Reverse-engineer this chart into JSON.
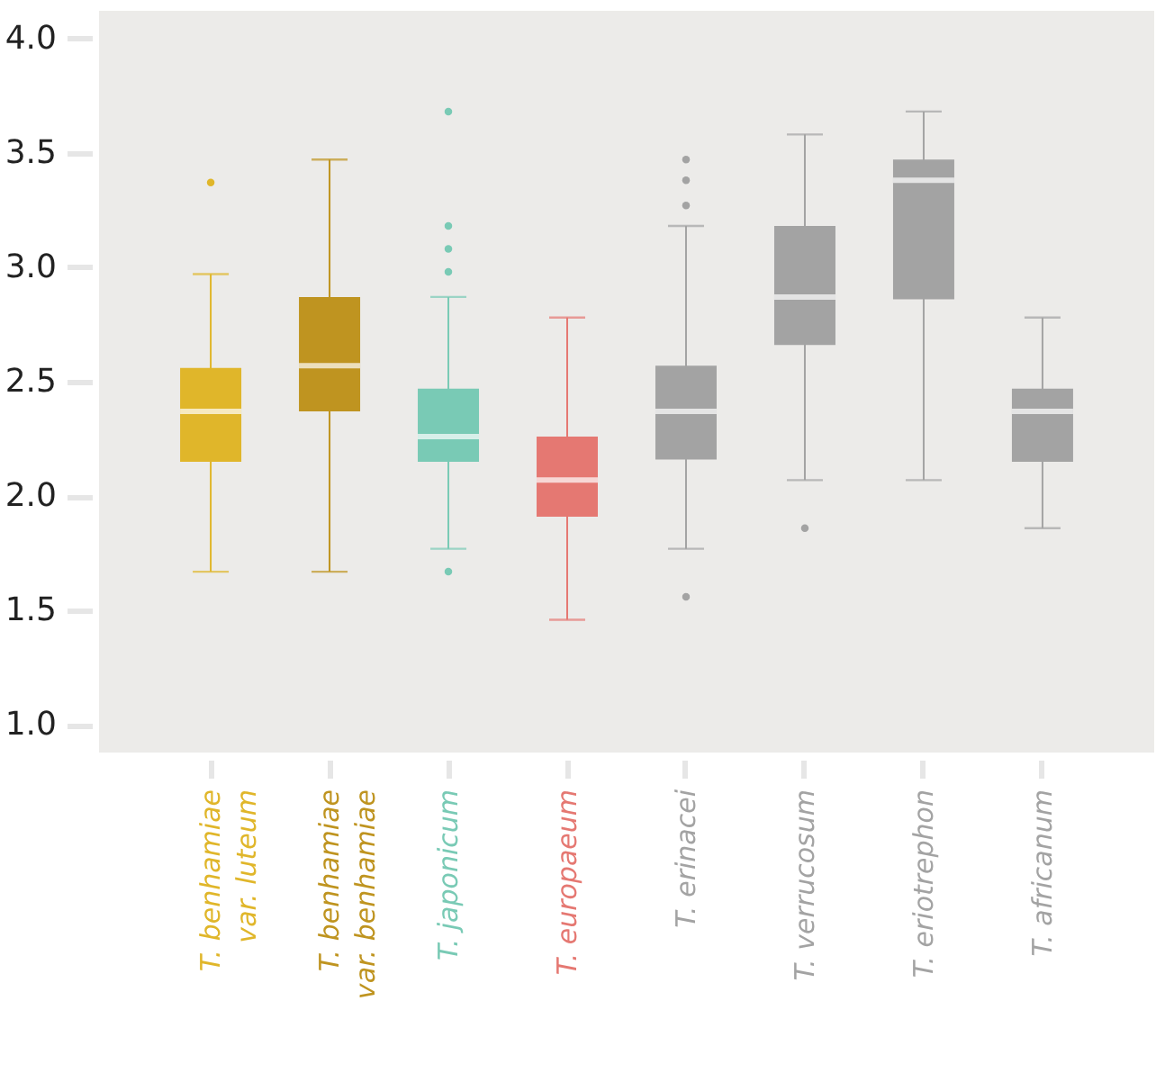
{
  "chart_data": {
    "type": "box",
    "categories": [
      "T. benhamiae\nvar. luteum",
      "T. benhamiae\nvar. benhamiae",
      "T. japonicum",
      "T. europaeum",
      "T. erinacei",
      "T. verrucosum",
      "T. eriotrephon",
      "T. africanum"
    ],
    "colors": [
      "#e0b62a",
      "#bf9420",
      "#79cab5",
      "#e57872",
      "#a3a3a3",
      "#a3a3a3",
      "#a3a3a3",
      "#a3a3a3"
    ],
    "boxes": [
      {
        "low": 1.67,
        "q1": 2.15,
        "median": 2.37,
        "q3": 2.56,
        "high": 2.97,
        "outliers": [
          3.37
        ]
      },
      {
        "low": 1.67,
        "q1": 2.37,
        "median": 2.57,
        "q3": 2.87,
        "high": 3.47
      },
      {
        "low": 1.77,
        "q1": 2.15,
        "median": 2.26,
        "q3": 2.47,
        "high": 2.87,
        "outliers": [
          3.68,
          3.18,
          3.08,
          2.98,
          1.67
        ]
      },
      {
        "low": 1.46,
        "q1": 1.91,
        "median": 2.07,
        "q3": 2.26,
        "high": 2.78
      },
      {
        "low": 1.77,
        "q1": 2.16,
        "median": 2.37,
        "q3": 2.57,
        "high": 3.18,
        "outliers": [
          3.47,
          3.38,
          3.27,
          1.56
        ]
      },
      {
        "low": 2.07,
        "q1": 2.66,
        "median": 2.87,
        "q3": 3.18,
        "high": 3.58,
        "outliers": [
          1.86
        ]
      },
      {
        "low": 2.07,
        "q1": 2.86,
        "median": 3.38,
        "q3": 3.47,
        "high": 3.68
      },
      {
        "low": 1.86,
        "q1": 2.15,
        "median": 2.37,
        "q3": 2.47,
        "high": 2.78
      }
    ],
    "ylim": [
      0.88,
      4.12
    ],
    "yticks": [
      {
        "value": 1,
        "label": "1.0"
      },
      {
        "value": 1.5,
        "label": "1.5"
      },
      {
        "value": 2,
        "label": "2.0"
      },
      {
        "value": 2.5,
        "label": "2.5"
      },
      {
        "value": 3,
        "label": "3.0"
      },
      {
        "value": 3.5,
        "label": "3.5"
      },
      {
        "value": 4,
        "label": "4.0"
      }
    ],
    "grid": false,
    "legend": false
  }
}
